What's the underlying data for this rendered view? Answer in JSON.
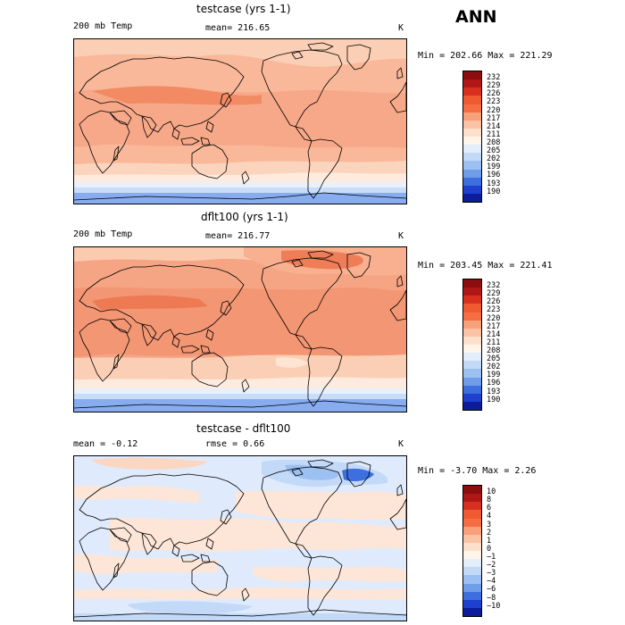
{
  "season": "ANN",
  "panels": [
    {
      "title": "testcase (yrs 1-1)",
      "variable": "200 mb Temp",
      "stat": "mean= 216.65",
      "stat2": "",
      "units": "K",
      "minmax": "Min = 202.66 Max = 221.29",
      "colorbar": {
        "labels": [
          "232",
          "229",
          "226",
          "223",
          "220",
          "217",
          "214",
          "211",
          "208",
          "205",
          "202",
          "199",
          "196",
          "193",
          "190"
        ],
        "colors": [
          "#8c0d0d",
          "#b01818",
          "#d7301f",
          "#ef5a33",
          "#f46d43",
          "#f7a07a",
          "#fbc3a3",
          "#fde0cb",
          "#fff4e8",
          "#e2eefc",
          "#c3d9f8",
          "#9cc0f2",
          "#6f9de9",
          "#3d6fdf",
          "#1f3fcf",
          "#0c1c9a"
        ]
      }
    },
    {
      "title": "dflt100 (yrs 1-1)",
      "variable": "200 mb Temp",
      "stat": "mean= 216.77",
      "stat2": "",
      "units": "K",
      "minmax": "Min = 203.45 Max = 221.41",
      "colorbar": {
        "labels": [
          "232",
          "229",
          "226",
          "223",
          "220",
          "217",
          "214",
          "211",
          "208",
          "205",
          "202",
          "199",
          "196",
          "193",
          "190"
        ],
        "colors": [
          "#8c0d0d",
          "#b01818",
          "#d7301f",
          "#ef5a33",
          "#f46d43",
          "#f7a07a",
          "#fbc3a3",
          "#fde0cb",
          "#fff4e8",
          "#e2eefc",
          "#c3d9f8",
          "#9cc0f2",
          "#6f9de9",
          "#3d6fdf",
          "#1f3fcf",
          "#0c1c9a"
        ]
      }
    },
    {
      "title": "testcase - dflt100",
      "variable": "mean =   -0.12",
      "stat": "rmse =    0.66",
      "stat2": "",
      "units": "K",
      "minmax": "Min =  -3.70 Max =   2.26",
      "colorbar": {
        "labels": [
          "10",
          "8",
          "6",
          "4",
          "3",
          "2",
          "1",
          "0",
          "−1",
          "−2",
          "−3",
          "−4",
          "−6",
          "−8",
          "−10"
        ],
        "colors": [
          "#8c0d0d",
          "#b01818",
          "#d7301f",
          "#ef5a33",
          "#f46d43",
          "#f7a07a",
          "#fbc3a3",
          "#fde0cb",
          "#fff4e8",
          "#e2eefc",
          "#c3d9f8",
          "#9cc0f2",
          "#6f9de9",
          "#3d6fdf",
          "#1f3fcf",
          "#0c1c9a"
        ]
      }
    }
  ]
}
